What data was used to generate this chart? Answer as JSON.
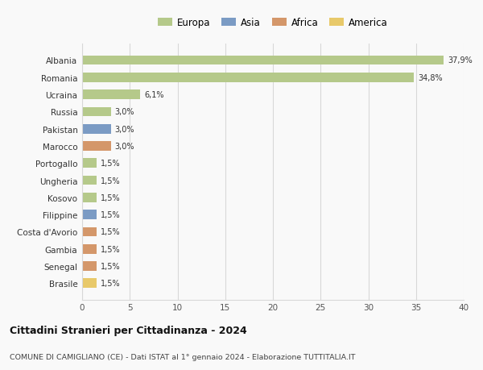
{
  "countries": [
    "Albania",
    "Romania",
    "Ucraina",
    "Russia",
    "Pakistan",
    "Marocco",
    "Portogallo",
    "Ungheria",
    "Kosovo",
    "Filippine",
    "Costa d'Avorio",
    "Gambia",
    "Senegal",
    "Brasile"
  ],
  "values": [
    37.9,
    34.8,
    6.1,
    3.0,
    3.0,
    3.0,
    1.5,
    1.5,
    1.5,
    1.5,
    1.5,
    1.5,
    1.5,
    1.5
  ],
  "labels": [
    "37,9%",
    "34,8%",
    "6,1%",
    "3,0%",
    "3,0%",
    "3,0%",
    "1,5%",
    "1,5%",
    "1,5%",
    "1,5%",
    "1,5%",
    "1,5%",
    "1,5%",
    "1,5%"
  ],
  "colors": [
    "#b5c98a",
    "#b5c98a",
    "#b5c98a",
    "#b5c98a",
    "#7b9bc4",
    "#d4976a",
    "#b5c98a",
    "#b5c98a",
    "#b5c98a",
    "#7b9bc4",
    "#d4976a",
    "#d4976a",
    "#d4976a",
    "#e8c96a"
  ],
  "legend_labels": [
    "Europa",
    "Asia",
    "Africa",
    "America"
  ],
  "legend_colors": [
    "#b5c98a",
    "#7b9bc4",
    "#d4976a",
    "#e8c96a"
  ],
  "title": "Cittadini Stranieri per Cittadinanza - 2024",
  "subtitle": "COMUNE DI CAMIGLIANO (CE) - Dati ISTAT al 1° gennaio 2024 - Elaborazione TUTTITALIA.IT",
  "xlim": [
    0,
    40
  ],
  "xticks": [
    0,
    5,
    10,
    15,
    20,
    25,
    30,
    35,
    40
  ],
  "background_color": "#f9f9f9",
  "grid_color": "#d8d8d8",
  "bar_height": 0.55
}
